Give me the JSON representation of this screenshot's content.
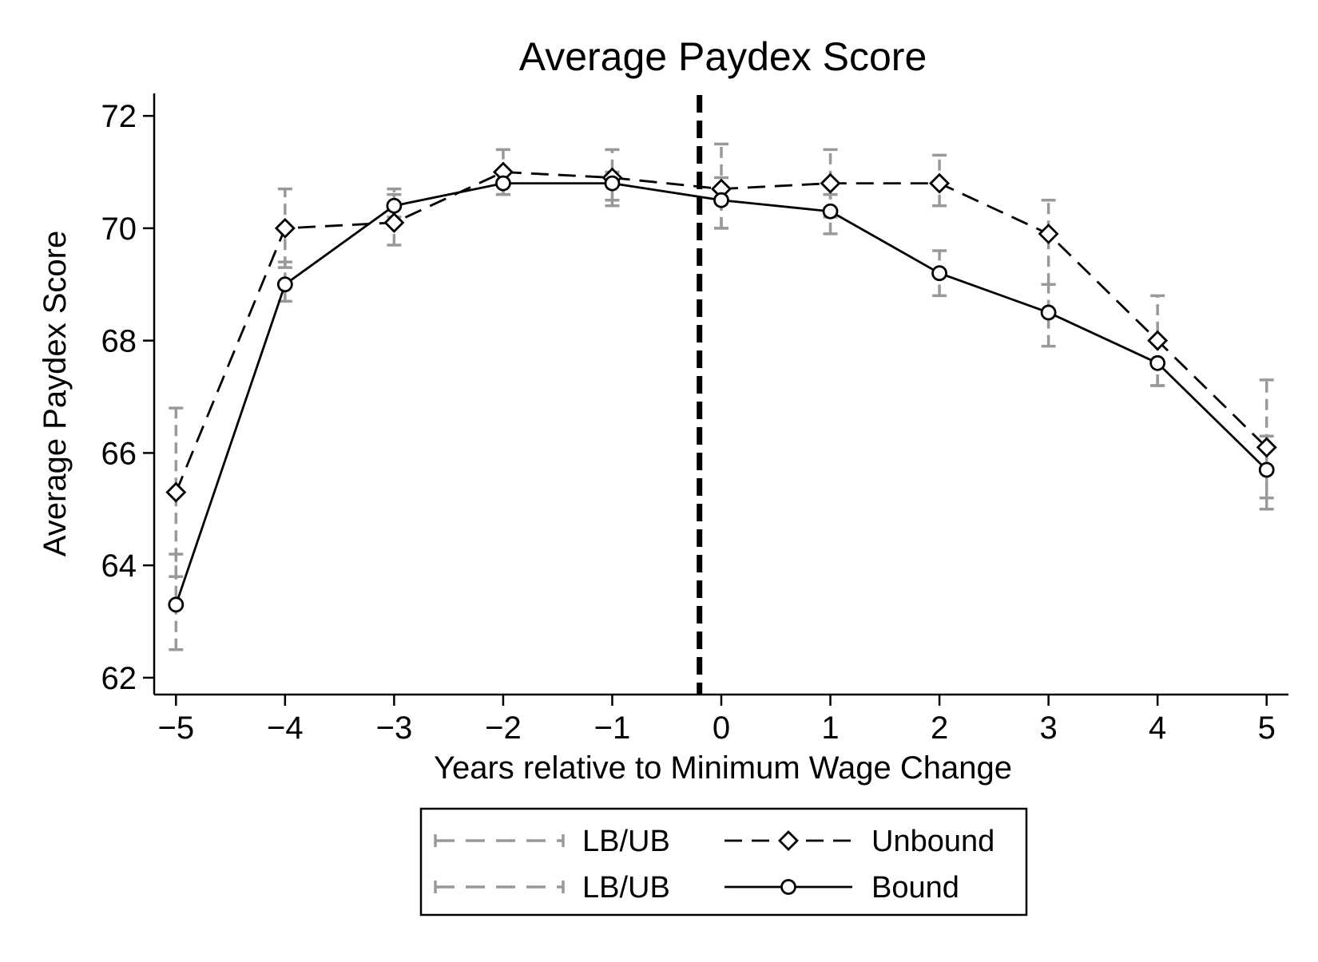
{
  "chart_data": {
    "type": "line",
    "title": "Average Paydex Score",
    "xlabel": "Years relative to Minimum Wage Change",
    "ylabel": "Average Paydex Score",
    "xlim": [
      -5.2,
      5.2
    ],
    "ylim": [
      61.7,
      72.4
    ],
    "x_ticks": [
      -5,
      -4,
      -3,
      -2,
      -1,
      0,
      1,
      2,
      3,
      4,
      5
    ],
    "x_tick_labels": [
      "−5",
      "−4",
      "−3",
      "−2",
      "−1",
      "0",
      "1",
      "2",
      "3",
      "4",
      "5"
    ],
    "y_ticks": [
      62,
      64,
      66,
      68,
      70,
      72
    ],
    "y_tick_labels": [
      "62",
      "64",
      "66",
      "68",
      "70",
      "72"
    ],
    "grid": false,
    "reference_line": {
      "x": -0.2,
      "style": "dashed",
      "color": "#000000"
    },
    "x": [
      -5,
      -4,
      -3,
      -2,
      -1,
      0,
      1,
      2,
      3,
      4,
      5
    ],
    "series": [
      {
        "name": "Unbound",
        "style": "dashed",
        "marker": "diamond",
        "color": "#000000",
        "values": [
          65.3,
          70.0,
          70.1,
          71.0,
          70.9,
          70.7,
          70.8,
          70.8,
          69.9,
          68.0,
          66.1
        ],
        "lb": [
          63.8,
          69.3,
          69.7,
          70.6,
          70.4,
          70.0,
          70.2,
          70.4,
          69.0,
          67.2,
          65.2
        ],
        "ub": [
          66.8,
          70.7,
          70.7,
          71.4,
          71.4,
          71.5,
          71.4,
          71.3,
          70.5,
          68.8,
          67.3
        ]
      },
      {
        "name": "Bound",
        "style": "solid",
        "marker": "circle",
        "color": "#000000",
        "values": [
          63.3,
          69.0,
          70.4,
          70.8,
          70.8,
          70.5,
          70.3,
          69.2,
          68.5,
          67.6,
          65.7
        ],
        "lb": [
          62.5,
          68.7,
          70.2,
          70.6,
          70.5,
          70.0,
          69.9,
          68.8,
          67.9,
          67.2,
          65.0
        ],
        "ub": [
          64.2,
          69.4,
          70.6,
          71.0,
          71.0,
          70.9,
          70.6,
          69.6,
          69.0,
          68.0,
          66.3
        ]
      }
    ],
    "error_bar_color": "#999999",
    "legend": {
      "placement": "bottom",
      "items": [
        {
          "label": "LB/UB",
          "kind": "errorbar"
        },
        {
          "label": "Unbound",
          "kind": "dashed-diamond"
        },
        {
          "label": "LB/UB",
          "kind": "errorbar"
        },
        {
          "label": "Bound",
          "kind": "solid-circle"
        }
      ]
    }
  }
}
